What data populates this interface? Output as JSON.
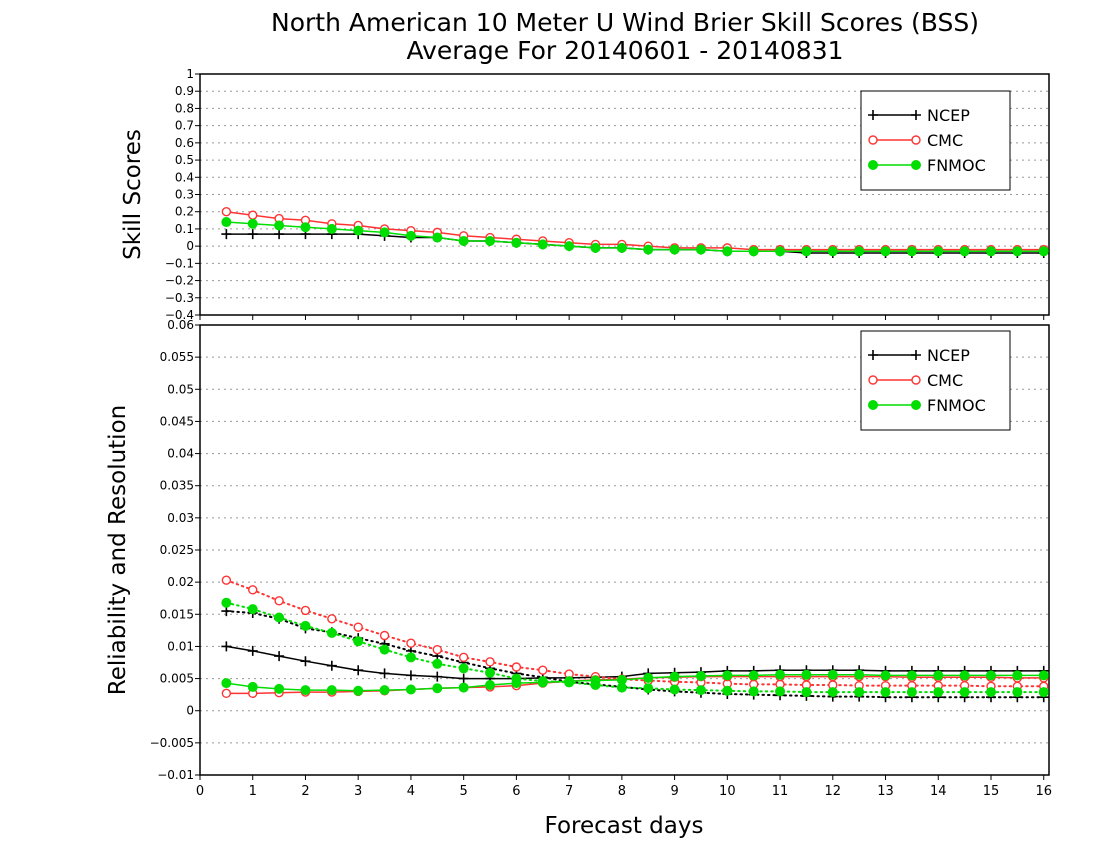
{
  "title_line1": "North American 10 Meter U Wind Brier Skill Scores (BSS)",
  "title_line2": "Average For 20140601 - 20140831",
  "xlabel": "Forecast days",
  "colors": {
    "NCEP": "#000000",
    "CMC": "#ff3333",
    "FNMOC": "#00dd00",
    "grid": "#999999"
  },
  "chart_data": [
    {
      "type": "line",
      "title": "North American 10 Meter U Wind Brier Skill Scores (BSS)",
      "subtitle": "Average For 20140601 - 20140831",
      "ylabel": "Skill Scores",
      "xlabel": "Forecast days",
      "xlim": [
        0,
        16.1
      ],
      "ylim": [
        -0.4,
        1
      ],
      "yticks": [
        "1",
        "0.9",
        "0.8",
        "0.7",
        "0.6",
        "0.5",
        "0.4",
        "0.3",
        "0.2",
        "0.1",
        "0",
        "−0.1",
        "−0.2",
        "−0.3",
        "−0.4"
      ],
      "ytick_values": [
        1,
        0.9,
        0.8,
        0.7,
        0.6,
        0.5,
        0.4,
        0.3,
        0.2,
        0.1,
        0,
        -0.1,
        -0.2,
        -0.3,
        -0.4
      ],
      "xticks": [
        "0",
        "1",
        "2",
        "3",
        "4",
        "5",
        "6",
        "7",
        "8",
        "9",
        "10",
        "11",
        "12",
        "13",
        "14",
        "15",
        "16"
      ],
      "grid": true,
      "legend_position": "top-right",
      "x": [
        0.5,
        1,
        1.5,
        2,
        2.5,
        3,
        3.5,
        4,
        4.5,
        5,
        5.5,
        6,
        6.5,
        7,
        7.5,
        8,
        8.5,
        9,
        9.5,
        10,
        10.5,
        11,
        11.5,
        12,
        12.5,
        13,
        13.5,
        14,
        14.5,
        15,
        15.5,
        16
      ],
      "series": [
        {
          "name": "NCEP",
          "values": [
            0.07,
            0.07,
            0.07,
            0.07,
            0.07,
            0.07,
            0.06,
            0.05,
            0.05,
            0.03,
            0.03,
            0.02,
            0.01,
            0,
            -0.01,
            -0.01,
            -0.02,
            -0.02,
            -0.02,
            -0.03,
            -0.03,
            -0.03,
            -0.04,
            -0.04,
            -0.04,
            -0.04,
            -0.04,
            -0.04,
            -0.04,
            -0.04,
            -0.04,
            -0.04
          ]
        },
        {
          "name": "CMC",
          "values": [
            0.2,
            0.18,
            0.16,
            0.15,
            0.13,
            0.12,
            0.1,
            0.09,
            0.08,
            0.06,
            0.05,
            0.04,
            0.03,
            0.02,
            0.01,
            0.01,
            0,
            -0.01,
            -0.01,
            -0.01,
            -0.02,
            -0.02,
            -0.02,
            -0.02,
            -0.02,
            -0.02,
            -0.02,
            -0.02,
            -0.02,
            -0.02,
            -0.02,
            -0.02
          ]
        },
        {
          "name": "FNMOC",
          "values": [
            0.14,
            0.13,
            0.12,
            0.11,
            0.1,
            0.09,
            0.08,
            0.06,
            0.05,
            0.03,
            0.03,
            0.02,
            0.01,
            0,
            -0.01,
            -0.01,
            -0.02,
            -0.02,
            -0.02,
            -0.03,
            -0.03,
            -0.03,
            -0.03,
            -0.03,
            -0.03,
            -0.03,
            -0.03,
            -0.03,
            -0.03,
            -0.03,
            -0.03,
            -0.03
          ]
        }
      ]
    },
    {
      "type": "line",
      "ylabel": "Reliability and Resolution",
      "xlabel": "Forecast days",
      "xlim": [
        0,
        16.1
      ],
      "ylim": [
        -0.01,
        0.06
      ],
      "yticks": [
        "0.06",
        "0.055",
        "0.05",
        "0.045",
        "0.04",
        "0.035",
        "0.03",
        "0.025",
        "0.02",
        "0.015",
        "0.01",
        "0.005",
        "0",
        "−0.005",
        "−0.01"
      ],
      "ytick_values": [
        0.06,
        0.055,
        0.05,
        0.045,
        0.04,
        0.035,
        0.03,
        0.025,
        0.02,
        0.015,
        0.01,
        0.005,
        0,
        -0.005,
        -0.01
      ],
      "xticks": [
        "0",
        "1",
        "2",
        "3",
        "4",
        "5",
        "6",
        "7",
        "8",
        "9",
        "10",
        "11",
        "12",
        "13",
        "14",
        "15",
        "16"
      ],
      "grid": true,
      "legend_position": "top-right",
      "x": [
        0.5,
        1,
        1.5,
        2,
        2.5,
        3,
        3.5,
        4,
        4.5,
        5,
        5.5,
        6,
        6.5,
        7,
        7.5,
        8,
        8.5,
        9,
        9.5,
        10,
        10.5,
        11,
        11.5,
        12,
        12.5,
        13,
        13.5,
        14,
        14.5,
        15,
        15.5,
        16
      ],
      "series": [
        {
          "name": "NCEP",
          "style": "dotted",
          "values": [
            0.0155,
            0.0152,
            0.0143,
            0.0128,
            0.0122,
            0.0113,
            0.0104,
            0.0093,
            0.0085,
            0.0075,
            0.0066,
            0.0058,
            0.0052,
            0.0045,
            0.0041,
            0.0037,
            0.0033,
            0.003,
            0.0028,
            0.0026,
            0.0025,
            0.0024,
            0.0023,
            0.0022,
            0.0022,
            0.0021,
            0.0021,
            0.0021,
            0.0021,
            0.0021,
            0.0021,
            0.0021
          ]
        },
        {
          "name": "NCEP",
          "style": "solid",
          "values": [
            0.01,
            0.0093,
            0.0085,
            0.0077,
            0.007,
            0.0063,
            0.0058,
            0.0055,
            0.0053,
            0.005,
            0.005,
            0.005,
            0.0051,
            0.0051,
            0.0052,
            0.0053,
            0.0058,
            0.0059,
            0.006,
            0.0062,
            0.0062,
            0.0063,
            0.0063,
            0.0063,
            0.0063,
            0.0062,
            0.0062,
            0.0062,
            0.0062,
            0.0062,
            0.0062,
            0.0062
          ]
        },
        {
          "name": "CMC",
          "style": "dotted",
          "values": [
            0.0203,
            0.0188,
            0.0171,
            0.0156,
            0.0143,
            0.013,
            0.0117,
            0.0105,
            0.0095,
            0.0083,
            0.0076,
            0.0068,
            0.0063,
            0.0057,
            0.0053,
            0.0049,
            0.0047,
            0.0045,
            0.0044,
            0.0042,
            0.0041,
            0.0041,
            0.004,
            0.004,
            0.0039,
            0.0039,
            0.0039,
            0.0039,
            0.0039,
            0.0038,
            0.0038,
            0.0038
          ]
        },
        {
          "name": "CMC",
          "style": "solid",
          "values": [
            0.0027,
            0.0027,
            0.0028,
            0.0029,
            0.0029,
            0.003,
            0.0031,
            0.0033,
            0.0035,
            0.0036,
            0.0037,
            0.0039,
            0.0043,
            0.0046,
            0.0048,
            0.0049,
            0.0051,
            0.0052,
            0.0053,
            0.0053,
            0.0053,
            0.0053,
            0.0053,
            0.0053,
            0.0053,
            0.0053,
            0.0052,
            0.0052,
            0.0052,
            0.0052,
            0.0051,
            0.0051
          ]
        },
        {
          "name": "FNMOC",
          "style": "dotted",
          "values": [
            0.0168,
            0.0158,
            0.0145,
            0.0132,
            0.0121,
            0.0108,
            0.0095,
            0.0083,
            0.0073,
            0.0066,
            0.0059,
            0.005,
            0.0046,
            0.0044,
            0.004,
            0.0036,
            0.0035,
            0.0033,
            0.0032,
            0.0031,
            0.003,
            0.003,
            0.0029,
            0.0029,
            0.0029,
            0.0029,
            0.0029,
            0.0029,
            0.0029,
            0.0029,
            0.0029,
            0.0029
          ]
        },
        {
          "name": "FNMOC",
          "style": "solid",
          "values": [
            0.0043,
            0.0037,
            0.0034,
            0.0032,
            0.0032,
            0.0031,
            0.0032,
            0.0033,
            0.0035,
            0.0036,
            0.004,
            0.0043,
            0.0044,
            0.0046,
            0.0047,
            0.0048,
            0.0051,
            0.0053,
            0.0054,
            0.0055,
            0.0055,
            0.0056,
            0.0056,
            0.0056,
            0.0056,
            0.0055,
            0.0055,
            0.0055,
            0.0055,
            0.0055,
            0.0055,
            0.0055
          ]
        }
      ]
    }
  ]
}
